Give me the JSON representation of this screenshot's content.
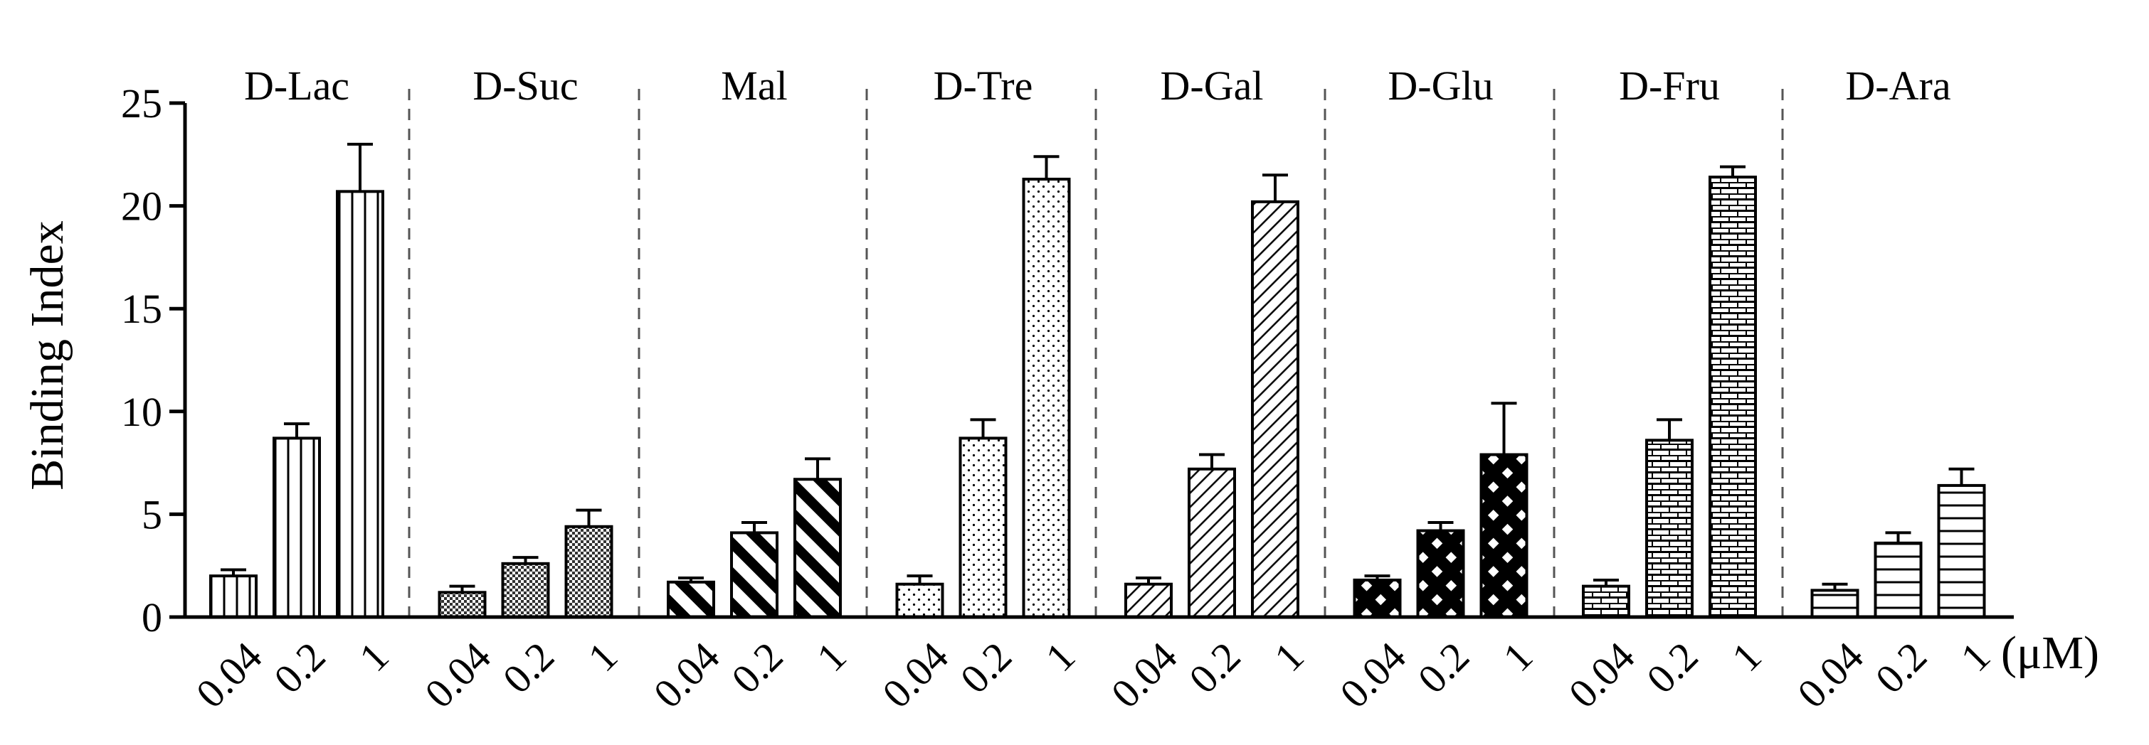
{
  "chart_data": {
    "type": "bar",
    "ylabel": "Binding Index",
    "ylim": [
      0,
      25
    ],
    "yticks": [
      0,
      5,
      10,
      15,
      20,
      25
    ],
    "x_unit_label": "(μM)",
    "concentrations": [
      "0.04",
      "0.2",
      "1"
    ],
    "grid": false,
    "error_bars": true,
    "group_separators": "dashed vertical lines",
    "groups": [
      {
        "name": "D-Lac",
        "pattern": "vertical-lines",
        "values": [
          2.0,
          8.7,
          20.7
        ],
        "errors": [
          0.3,
          0.7,
          2.3
        ]
      },
      {
        "name": "D-Suc",
        "pattern": "fine-crosshatch",
        "values": [
          1.2,
          2.6,
          4.4
        ],
        "errors": [
          0.3,
          0.3,
          0.8
        ]
      },
      {
        "name": "Mal",
        "pattern": "thick-diagonal",
        "values": [
          1.7,
          4.1,
          6.7
        ],
        "errors": [
          0.2,
          0.5,
          1.0
        ]
      },
      {
        "name": "D-Tre",
        "pattern": "dots",
        "values": [
          1.6,
          8.7,
          21.3
        ],
        "errors": [
          0.4,
          0.9,
          1.1
        ]
      },
      {
        "name": "D-Gal",
        "pattern": "thin-diagonal",
        "values": [
          1.6,
          7.2,
          20.2
        ],
        "errors": [
          0.3,
          0.7,
          1.3
        ]
      },
      {
        "name": "D-Glu",
        "pattern": "diamond-checker",
        "values": [
          1.8,
          4.2,
          7.9
        ],
        "errors": [
          0.2,
          0.4,
          2.5
        ]
      },
      {
        "name": "D-Fru",
        "pattern": "brick",
        "values": [
          1.5,
          8.6,
          21.4
        ],
        "errors": [
          0.3,
          1.0,
          0.5
        ]
      },
      {
        "name": "D-Ara",
        "pattern": "horizontal-lines",
        "values": [
          1.3,
          3.6,
          6.4
        ],
        "errors": [
          0.3,
          0.5,
          0.8
        ]
      }
    ]
  }
}
